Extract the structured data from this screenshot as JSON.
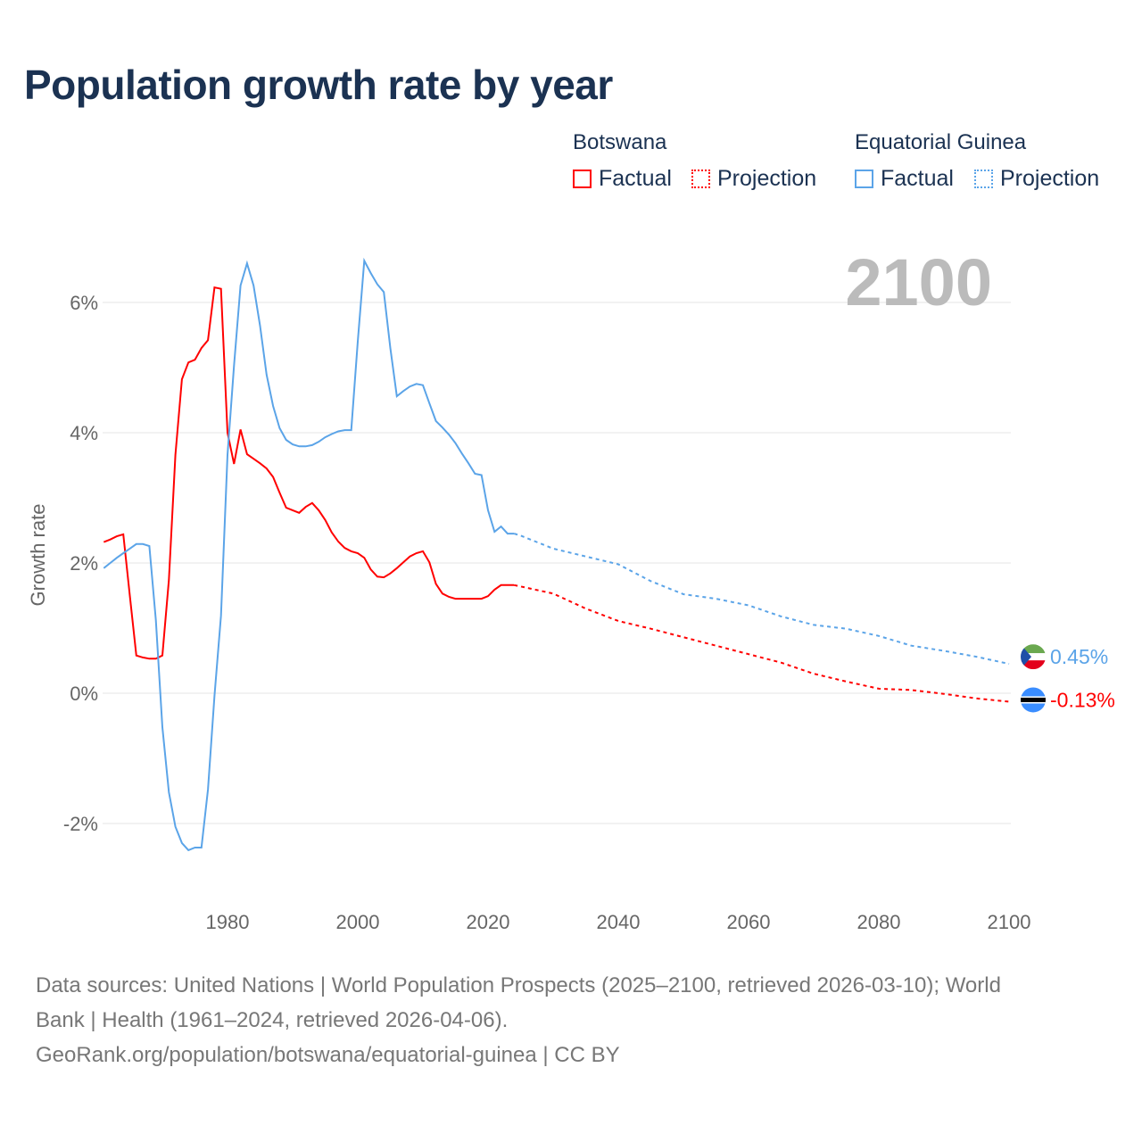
{
  "chart_data": {
    "type": "line",
    "title": "Population growth rate by year",
    "ylabel": "Growth rate",
    "xlabel": "",
    "ylim": [
      -3,
      7
    ],
    "xlim": [
      1961,
      2100
    ],
    "yticks": [
      -2,
      0,
      2,
      4,
      6
    ],
    "ytick_labels": [
      "-2%",
      "0%",
      "2%",
      "4%",
      "6%"
    ],
    "xticks": [
      1980,
      2000,
      2020,
      2040,
      2060,
      2080,
      2100
    ],
    "xtick_labels": [
      "1980",
      "2000",
      "2020",
      "2040",
      "2060",
      "2080",
      "2100"
    ],
    "year_overlay": "2100",
    "legend": {
      "groups": [
        {
          "country": "Botswana",
          "factual": "Factual",
          "projection": "Projection"
        },
        {
          "country": "Equatorial Guinea",
          "factual": "Factual",
          "projection": "Projection"
        }
      ]
    },
    "series": [
      {
        "name": "Botswana",
        "color": "#ff0000",
        "end_label": "-0.13%",
        "factual": {
          "x": [
            1961,
            1962,
            1963,
            1964,
            1965,
            1966,
            1967,
            1968,
            1969,
            1970,
            1971,
            1972,
            1973,
            1974,
            1975,
            1976,
            1977,
            1978,
            1979,
            1980,
            1981,
            1982,
            1983,
            1984,
            1985,
            1986,
            1987,
            1988,
            1989,
            1990,
            1991,
            1992,
            1993,
            1994,
            1995,
            1996,
            1997,
            1998,
            1999,
            2000,
            2001,
            2002,
            2003,
            2004,
            2005,
            2006,
            2007,
            2008,
            2009,
            2010,
            2011,
            2012,
            2013,
            2014,
            2015,
            2016,
            2017,
            2018,
            2019,
            2020,
            2021,
            2022,
            2023,
            2024
          ],
          "y": [
            2.32,
            2.36,
            2.41,
            2.44,
            1.5,
            0.58,
            0.55,
            0.53,
            0.53,
            0.58,
            1.74,
            3.66,
            4.82,
            5.08,
            5.12,
            5.3,
            5.42,
            6.23,
            6.21,
            4.0,
            3.52,
            4.05,
            3.67,
            3.6,
            3.53,
            3.45,
            3.32,
            3.08,
            2.85,
            2.81,
            2.77,
            2.86,
            2.92,
            2.81,
            2.66,
            2.47,
            2.33,
            2.23,
            2.18,
            2.15,
            2.08,
            1.9,
            1.79,
            1.78,
            1.84,
            1.92,
            2.01,
            2.1,
            2.15,
            2.18,
            2.01,
            1.68,
            1.53,
            1.48,
            1.45,
            1.45,
            1.45,
            1.45,
            1.45,
            1.49,
            1.59,
            1.66,
            1.66,
            1.66
          ]
        },
        "projection": {
          "x": [
            2024,
            2025,
            2030,
            2035,
            2040,
            2045,
            2050,
            2055,
            2060,
            2065,
            2070,
            2075,
            2080,
            2085,
            2090,
            2095,
            2100
          ],
          "y": [
            1.66,
            1.64,
            1.53,
            1.3,
            1.11,
            0.99,
            0.86,
            0.73,
            0.6,
            0.47,
            0.3,
            0.18,
            0.07,
            0.05,
            -0.01,
            -0.08,
            -0.13
          ]
        }
      },
      {
        "name": "Equatorial Guinea",
        "color": "#5ba4e8",
        "end_label": "0.45%",
        "factual": {
          "x": [
            1961,
            1962,
            1963,
            1964,
            1965,
            1966,
            1967,
            1968,
            1969,
            1970,
            1971,
            1972,
            1973,
            1974,
            1975,
            1976,
            1977,
            1978,
            1979,
            1980,
            1981,
            1982,
            1983,
            1984,
            1985,
            1986,
            1987,
            1988,
            1989,
            1990,
            1991,
            1992,
            1993,
            1994,
            1995,
            1996,
            1997,
            1998,
            1999,
            2000,
            2001,
            2002,
            2003,
            2004,
            2005,
            2006,
            2007,
            2008,
            2009,
            2010,
            2011,
            2012,
            2013,
            2014,
            2015,
            2016,
            2017,
            2018,
            2019,
            2020,
            2021,
            2022,
            2023,
            2024
          ],
          "y": [
            1.92,
            2.0,
            2.08,
            2.15,
            2.22,
            2.29,
            2.29,
            2.26,
            1.12,
            -0.52,
            -1.52,
            -2.05,
            -2.3,
            -2.41,
            -2.37,
            -2.37,
            -1.48,
            -0.04,
            1.19,
            3.66,
            5.03,
            6.26,
            6.6,
            6.26,
            5.64,
            4.89,
            4.41,
            4.07,
            3.89,
            3.82,
            3.79,
            3.79,
            3.81,
            3.86,
            3.93,
            3.98,
            4.02,
            4.04,
            4.04,
            5.4,
            6.64,
            6.45,
            6.28,
            6.16,
            5.3,
            4.56,
            4.64,
            4.71,
            4.75,
            4.73,
            4.45,
            4.18,
            4.08,
            3.97,
            3.84,
            3.68,
            3.53,
            3.37,
            3.35,
            2.81,
            2.48,
            2.56,
            2.45,
            2.45
          ]
        },
        "projection": {
          "x": [
            2024,
            2025,
            2030,
            2035,
            2040,
            2045,
            2050,
            2055,
            2060,
            2065,
            2070,
            2075,
            2080,
            2085,
            2090,
            2095,
            2100
          ],
          "y": [
            2.45,
            2.42,
            2.22,
            2.1,
            1.98,
            1.72,
            1.52,
            1.45,
            1.35,
            1.18,
            1.05,
            0.99,
            0.88,
            0.73,
            0.65,
            0.56,
            0.45
          ]
        }
      }
    ]
  },
  "footer": {
    "line1": "Data sources: United Nations | World Population Prospects (2025–2100, retrieved 2026-03-10); World",
    "line2": "Bank | Health (1961–2024, retrieved 2026-04-06).",
    "line3": "GeoRank.org/population/botswana/equatorial-guinea | CC BY"
  }
}
